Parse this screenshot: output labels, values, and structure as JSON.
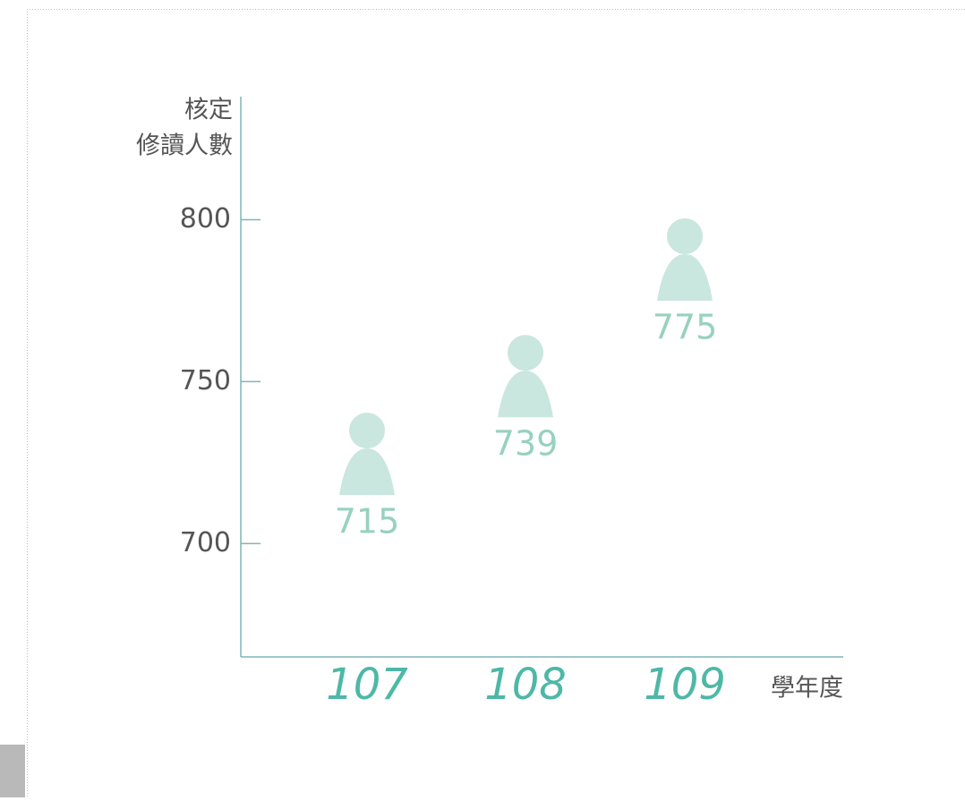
{
  "chart_data": {
    "type": "pictogram",
    "y_label": [
      "核定",
      "修讀人數"
    ],
    "x_label": "學年度",
    "categories": [
      "107",
      "108",
      "109"
    ],
    "values": [
      715,
      739,
      775
    ],
    "ylim": [
      665,
      838
    ],
    "yticks": [
      700,
      750,
      800
    ],
    "icon_color": "#c9e6df",
    "value_label_color": "#97d1bf",
    "category_color": "#4db8a6",
    "axis_color": "#7fb4b8"
  }
}
